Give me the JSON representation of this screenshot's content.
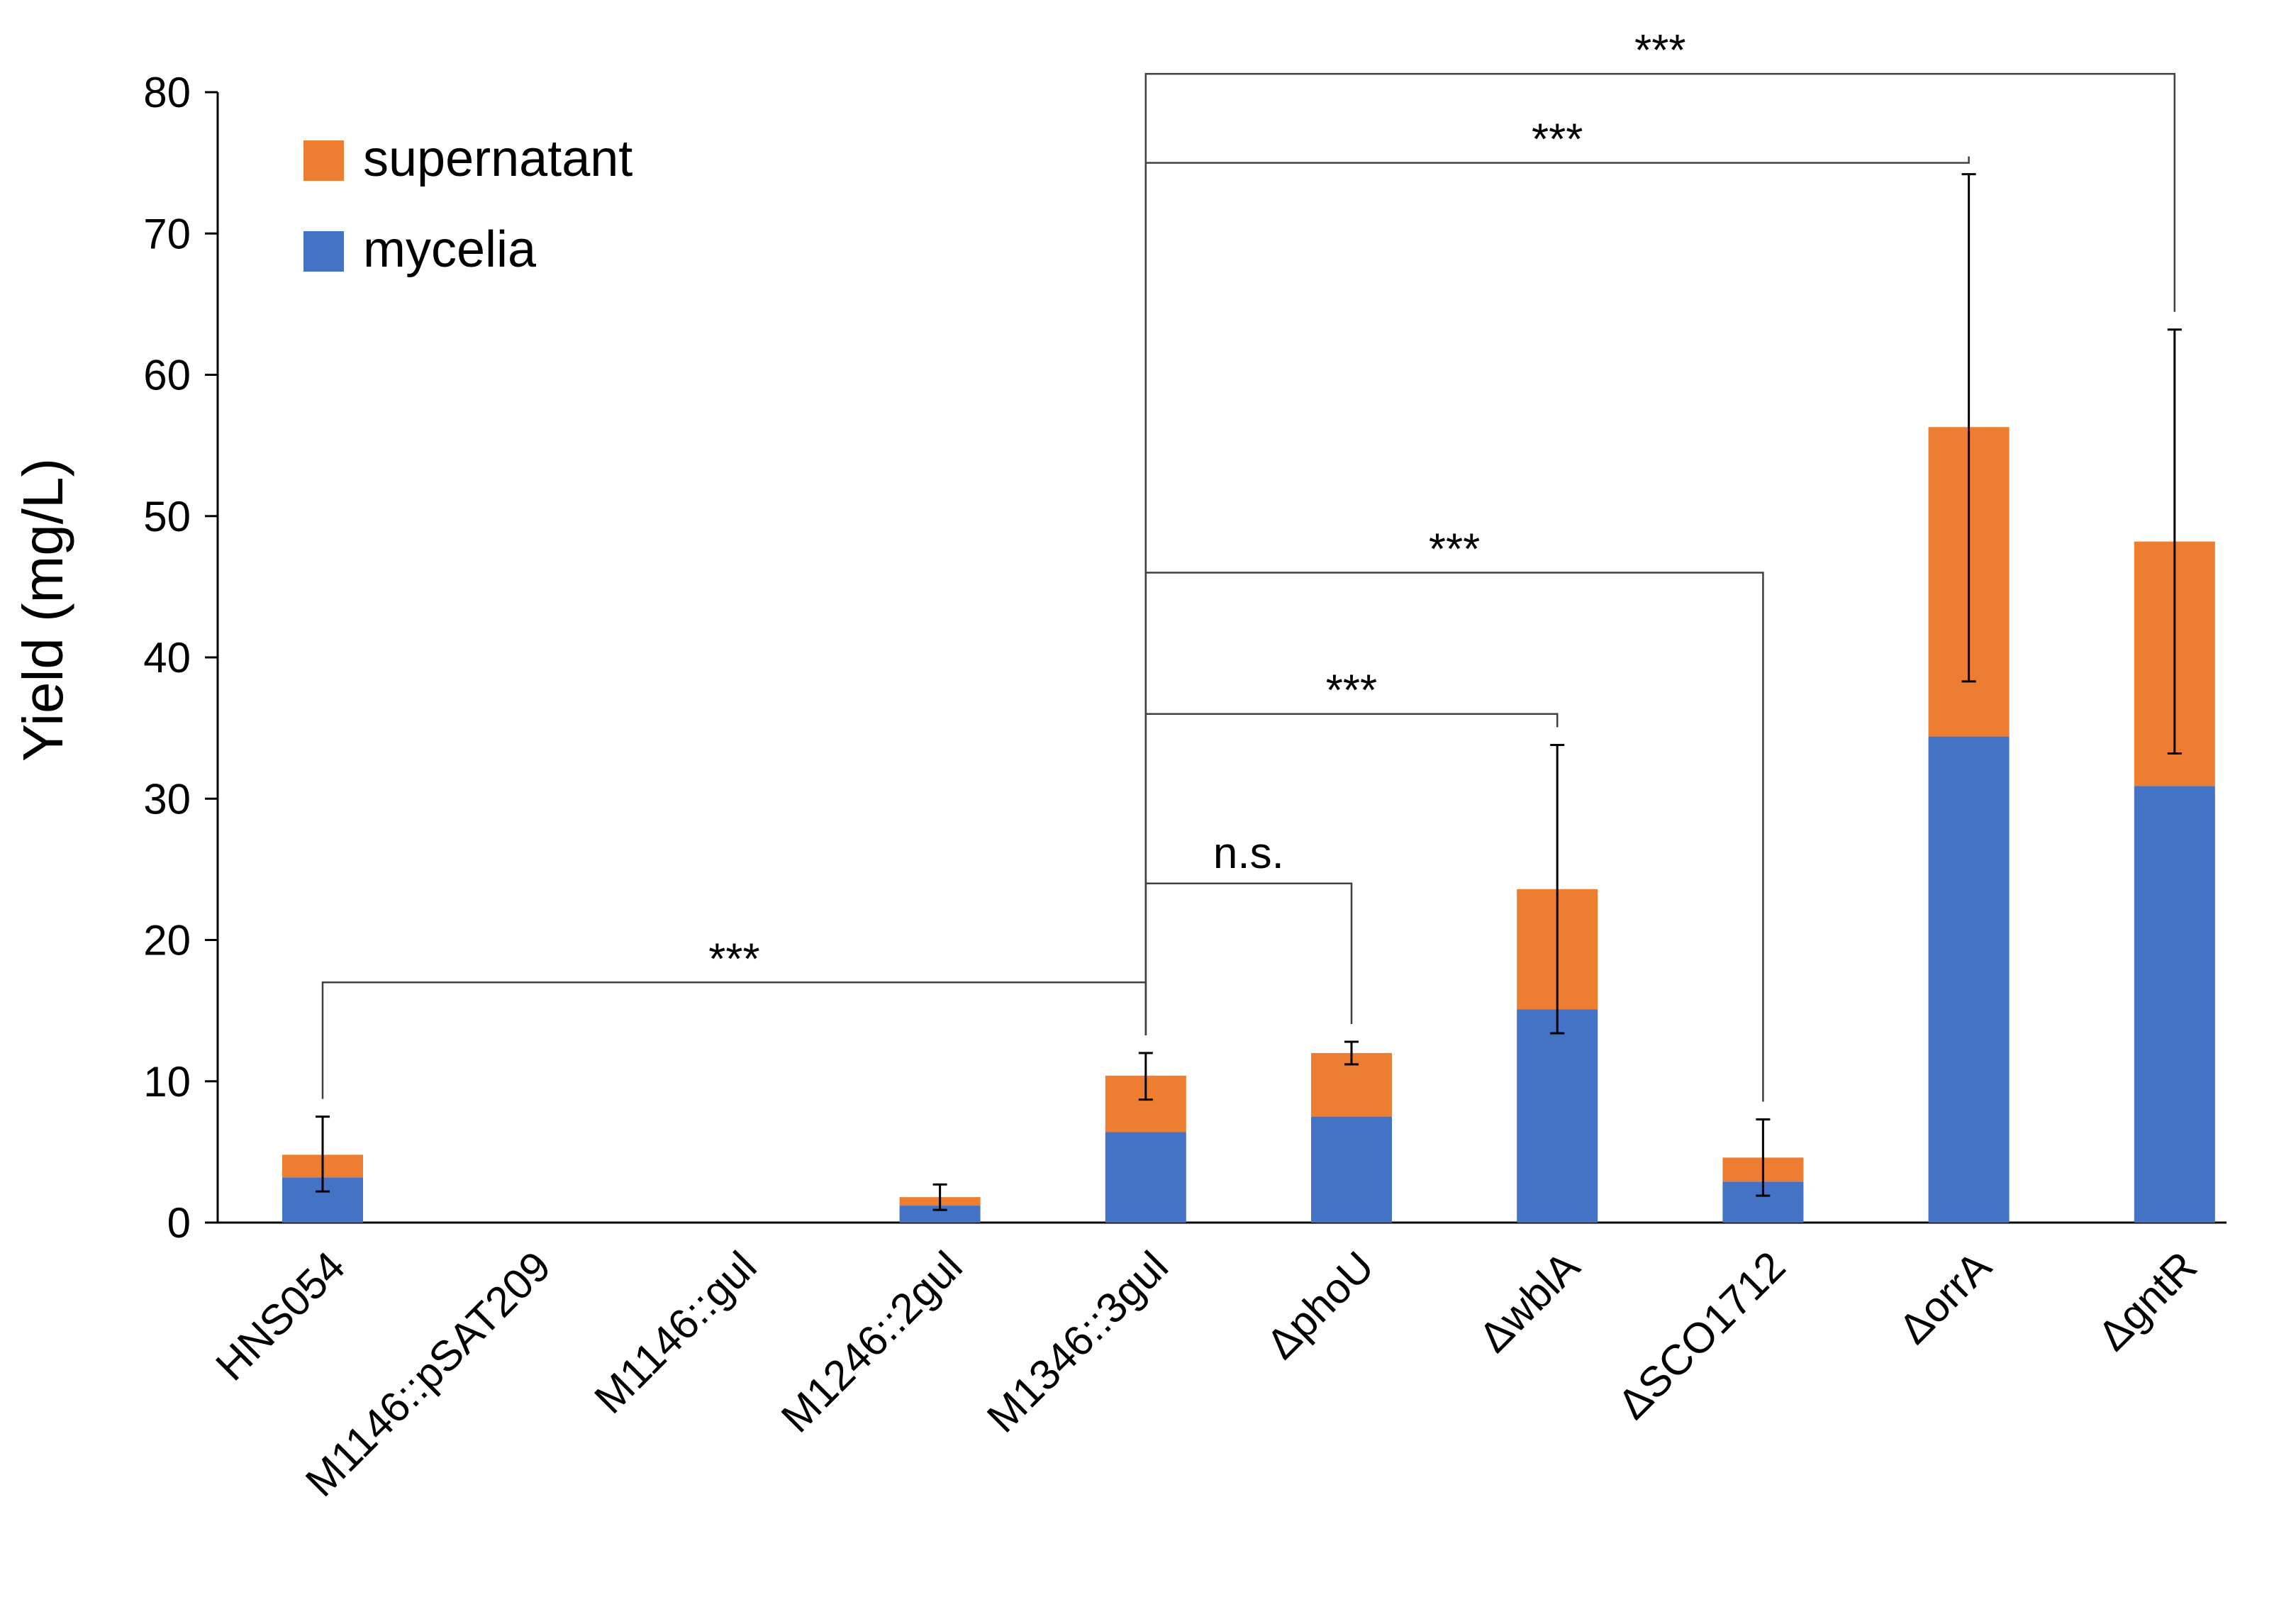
{
  "chart_data": {
    "type": "bar",
    "stacked": true,
    "ylabel": "Yield (mg/L)",
    "xlabel": "",
    "ylim": [
      0,
      80
    ],
    "yticks": [
      0,
      10,
      20,
      30,
      40,
      50,
      60,
      70,
      80
    ],
    "categories": [
      "HNS054",
      "M1146::pSAT209",
      "M1146::gul",
      "M1246::2gul",
      "M1346::3gul",
      "ΔphoU",
      "ΔwblA",
      "ΔSCO1712",
      "ΔorrA",
      "ΔgntR"
    ],
    "series": [
      {
        "name": "mycelia",
        "color": "#4472C4",
        "values": [
          3.2,
          0,
          0,
          1.2,
          6.4,
          7.5,
          15.1,
          2.9,
          34.4,
          30.9
        ]
      },
      {
        "name": "supernatant",
        "color": "#ED7D31",
        "values": [
          1.6,
          0,
          0,
          0.6,
          4.0,
          4.5,
          8.5,
          1.7,
          21.9,
          17.3
        ]
      }
    ],
    "error_bars": {
      "low": [
        2.2,
        null,
        null,
        0.9,
        8.7,
        11.2,
        13.4,
        1.9,
        38.3,
        33.2
      ],
      "high": [
        7.5,
        null,
        null,
        2.7,
        12.0,
        12.8,
        33.8,
        7.3,
        74.2,
        63.2
      ]
    },
    "legend": {
      "placement": "top-left",
      "order": [
        "supernatant",
        "mycelia"
      ]
    },
    "grid": false,
    "significance": [
      {
        "from": 0,
        "to": 4,
        "label": "***",
        "y": 17
      },
      {
        "from": 4,
        "to": 5,
        "label": "n.s.",
        "y": 24
      },
      {
        "from": 4,
        "to": 6,
        "label": "***",
        "y": 36
      },
      {
        "from": 4,
        "to": 7,
        "label": "***",
        "y": 46
      },
      {
        "from": 4,
        "to": 8,
        "label": "***",
        "y": 75
      },
      {
        "from": 4,
        "to": 9,
        "label": "***",
        "y": 81.3
      }
    ]
  }
}
